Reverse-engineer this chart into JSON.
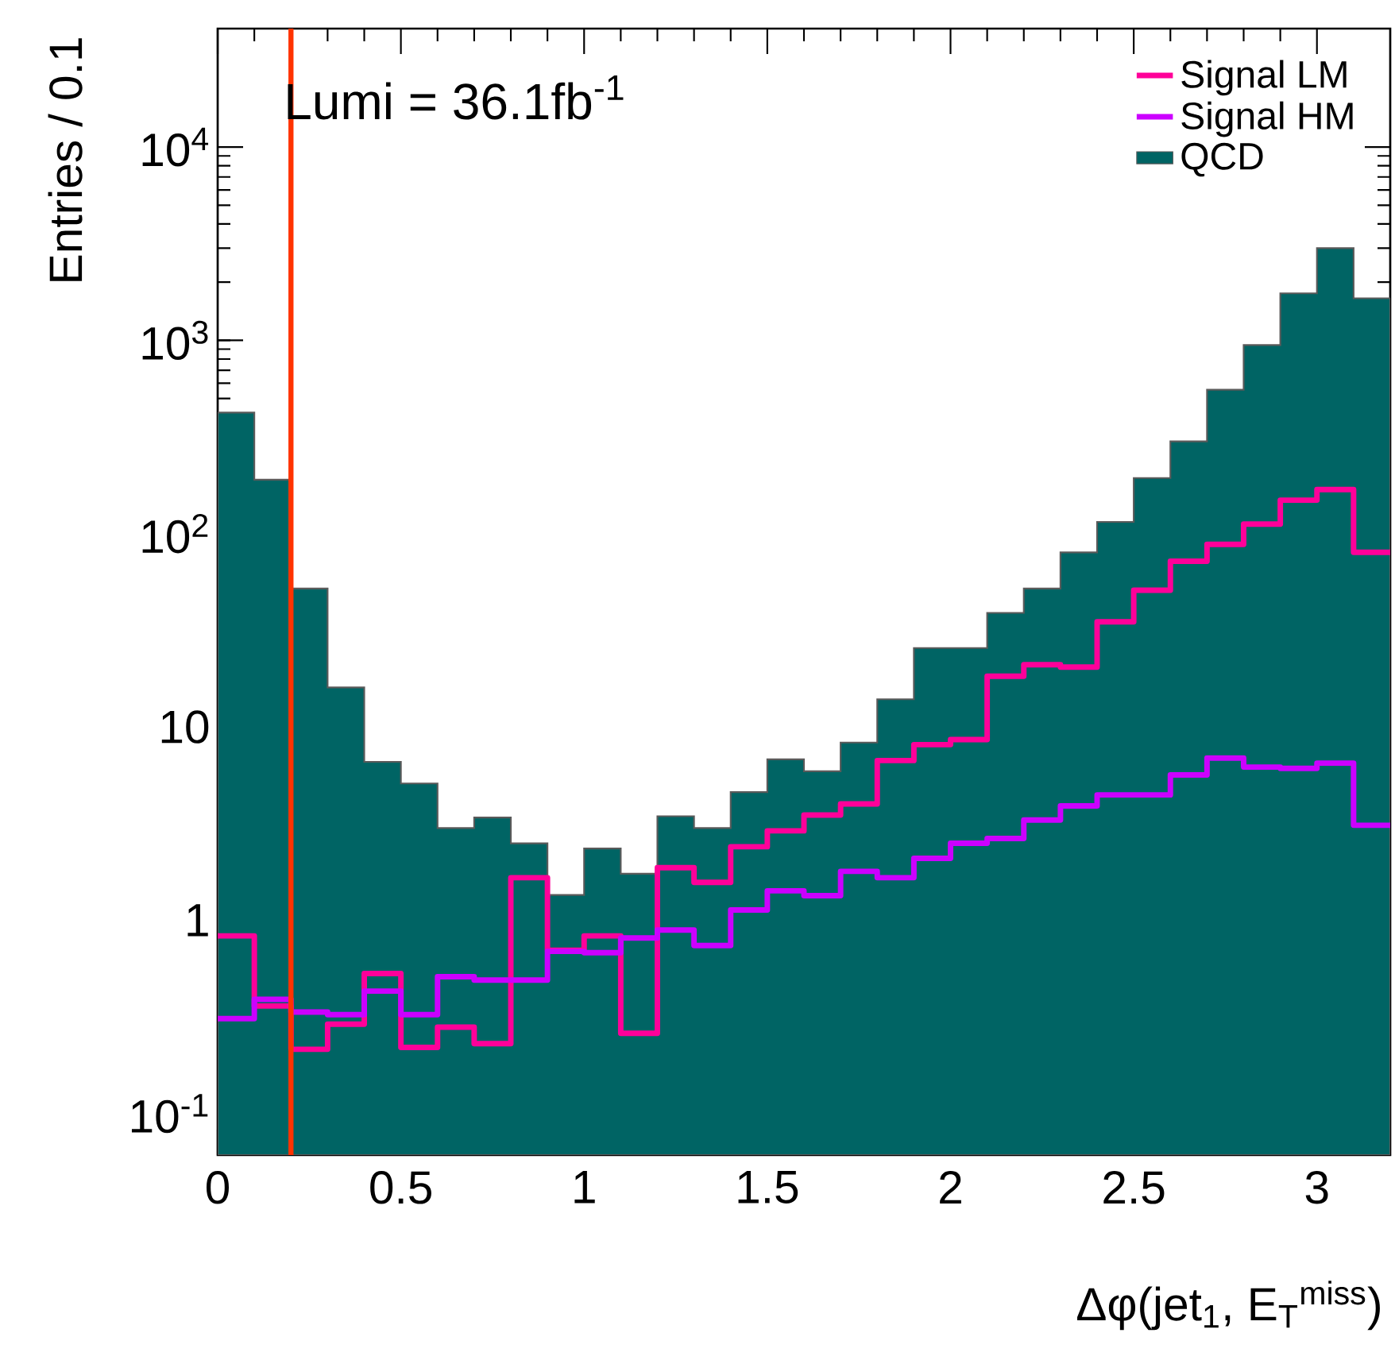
{
  "chart_data": {
    "type": "histogram",
    "xlabel": "Δφ(jet$_{1}$, E$_{T}$$^{miss}$)",
    "ylabel": "Entries / 0.1",
    "annotations": [
      "Lumi = 36.1fb$^{-1}$"
    ],
    "bins": [
      0,
      0.1,
      0.2,
      0.3,
      0.4,
      0.5,
      0.6,
      0.7,
      0.8,
      0.9,
      1.0,
      1.1,
      1.2,
      1.3,
      1.4,
      1.5,
      1.6,
      1.7,
      1.8,
      1.9,
      2.0,
      2.1,
      2.2,
      2.3,
      2.4,
      2.5,
      2.6,
      2.7,
      2.8,
      2.9,
      3.0,
      3.1,
      3.2
    ],
    "series": [
      {
        "name": "Signal LM",
        "line_style": "solid",
        "color": "#ff0099",
        "values": [
          0.83,
          0.36,
          0.215,
          0.29,
          0.53,
          0.22,
          0.28,
          0.23,
          1.66,
          0.7,
          0.83,
          0.26,
          1.87,
          1.57,
          2.4,
          2.9,
          3.5,
          4.0,
          6.7,
          8.1,
          8.6,
          18.3,
          21,
          20.4,
          35,
          51,
          72,
          88,
          112,
          149,
          169,
          80
        ]
      },
      {
        "name": "Signal HM",
        "line_style": "solid",
        "color": "#cc00ff",
        "values": [
          0.31,
          0.39,
          0.335,
          0.325,
          0.43,
          0.325,
          0.51,
          0.49,
          0.49,
          0.69,
          0.68,
          0.81,
          0.89,
          0.74,
          1.13,
          1.42,
          1.34,
          1.79,
          1.66,
          2.09,
          2.5,
          2.65,
          3.3,
          3.9,
          4.45,
          4.45,
          5.65,
          6.9,
          6.2,
          6.1,
          6.5,
          3.1
        ]
      },
      {
        "name": "QCD",
        "type": "histogram",
        "color": "#006464",
        "values": [
          423,
          190,
          52,
          16,
          6.6,
          5.1,
          3.0,
          3.4,
          2.5,
          1.35,
          2.35,
          1.74,
          3.45,
          3.0,
          4.6,
          6.8,
          5.9,
          8.3,
          13.9,
          25.6,
          25.6,
          38.9,
          52,
          80,
          115,
          194,
          300,
          555,
          945,
          1750,
          3000,
          1650
        ]
      }
    ],
    "xlim": [
      0,
      3.2
    ],
    "xticks": [
      0,
      0.5,
      1,
      1.5,
      2,
      2.5,
      3
    ],
    "ylim": [
      0.061,
      41000
    ],
    "log": true,
    "yticks": [
      {
        "value": 0.1,
        "label": "10$^{-1}$"
      },
      1,
      10,
      {
        "value": 100,
        "label": "10$^{2}$"
      },
      {
        "value": 1000,
        "label": "10$^{3}$"
      },
      {
        "value": 10000,
        "label": "10$^{4}$"
      }
    ],
    "ref_lines": [
      {
        "axis": "x",
        "value": 0.2,
        "color": "#ff3300"
      }
    ],
    "legend": "top right"
  }
}
